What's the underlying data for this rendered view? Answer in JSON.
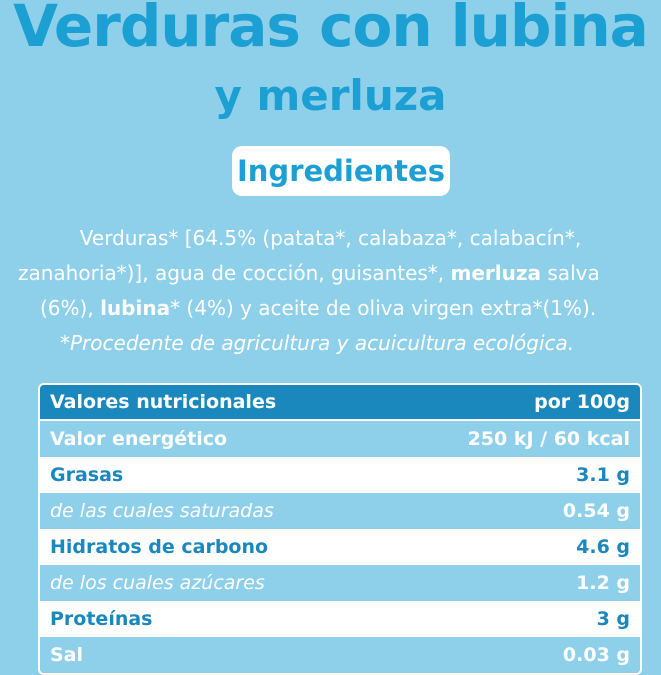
{
  "header": {
    "title": "Verduras con lubina",
    "subtitle": "y merluza",
    "badge": "Ingredientes"
  },
  "ingredients": {
    "line1": "Verduras* [64.5% (patata*, calabaza*, calabacín*,",
    "line2_a": "zanahoria*)], agua de cocción, guisantes*, ",
    "line2_bold": "merluza",
    "line2_b": " salva",
    "line3_a": "(6%), ",
    "line3_bold": "lubina",
    "line3_b": "* (4%)  y aceite de oliva virgen extra*(1%).",
    "note": "*Procedente de agricultura y acuicultura ecológica."
  },
  "nutrition": {
    "header_label": "Valores nutricionales",
    "header_value": "por 100g",
    "rows": [
      {
        "label": "Valor energético",
        "value": "250 kJ / 60 kcal"
      },
      {
        "label": "Grasas",
        "value": "3.1 g"
      },
      {
        "label": "de las cuales saturadas",
        "value": "0.54 g"
      },
      {
        "label": "Hidratos de carbono",
        "value": "4.6 g"
      },
      {
        "label": "de los cuales azúcares",
        "value": "1.2 g"
      },
      {
        "label": "Proteínas",
        "value": "3 g"
      },
      {
        "label": "Sal",
        "value": "0.03 g"
      }
    ]
  },
  "colors": {
    "background": "#8ed0e9",
    "title": "#1c9fd3",
    "header_bar": "#1b88bd",
    "row_white": "#ffffff"
  }
}
